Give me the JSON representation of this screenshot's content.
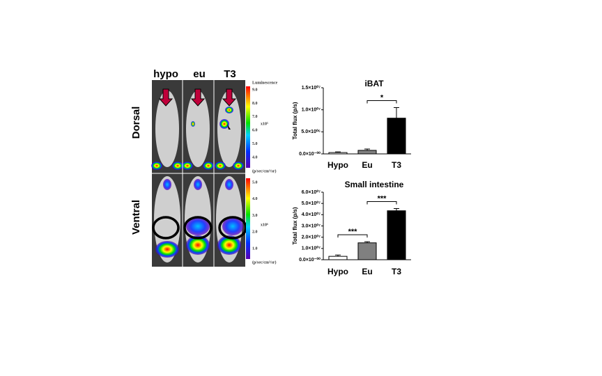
{
  "images": {
    "columns": [
      "hypo",
      "eu",
      "T3"
    ],
    "rows": [
      "Dorsal",
      "Ventral"
    ],
    "colorbar_top": {
      "title": "Luminescence",
      "ticks": [
        "9.0",
        "8.0",
        "7.0",
        "6.0",
        "5.0",
        "4.0"
      ],
      "scale": "x10⁵",
      "unit": "(p/sec/cm²/sr)"
    },
    "colorbar_bottom": {
      "ticks": [
        "5.0",
        "4.0",
        "3.0",
        "2.0",
        "1.0"
      ],
      "scale": "x10⁶",
      "unit": "(p/sec/cm²/sr)"
    }
  },
  "chart_data": [
    {
      "type": "bar",
      "title": "iBAT",
      "y_label": "Total flux (p/s)",
      "categories": [
        "Hypo",
        "Eu",
        "T3"
      ],
      "values": [
        300000,
        800000,
        8100000
      ],
      "errors": [
        150000,
        300000,
        2400000
      ],
      "colors": [
        "#ffffff",
        "#808080",
        "#000000"
      ],
      "ylim": [
        0,
        15000000
      ],
      "yticks": [
        {
          "value": 0,
          "label": "0.0×10⁻⁰⁰"
        },
        {
          "value": 5000000,
          "label": "5.0×10⁰⁶"
        },
        {
          "value": 10000000,
          "label": "1.0×10⁰⁷"
        },
        {
          "value": 15000000,
          "label": "1.5×10⁰⁷"
        }
      ],
      "annotations": [
        {
          "text": "*",
          "between": [
            "Eu",
            "T3"
          ]
        }
      ]
    },
    {
      "type": "bar",
      "title": "Small intestine",
      "y_label": "Total flux (p/s)",
      "categories": [
        "Hypo",
        "Eu",
        "T3"
      ],
      "values": [
        3000000,
        15000000,
        43500000
      ],
      "errors": [
        1200000,
        1000000,
        2000000
      ],
      "colors": [
        "#ffffff",
        "#808080",
        "#000000"
      ],
      "ylim": [
        0,
        60000000
      ],
      "yticks": [
        {
          "value": 0,
          "label": "0.0×10⁻⁰⁰"
        },
        {
          "value": 10000000,
          "label": "1.0×10⁰⁷"
        },
        {
          "value": 20000000,
          "label": "2.0×10⁰⁷"
        },
        {
          "value": 30000000,
          "label": "3.0×10⁰⁷"
        },
        {
          "value": 40000000,
          "label": "4.0×10⁰⁷"
        },
        {
          "value": 50000000,
          "label": "5.0×10⁰⁷"
        },
        {
          "value": 60000000,
          "label": "6.0×10⁰⁷"
        }
      ],
      "annotations": [
        {
          "text": "***",
          "between": [
            "Hypo",
            "Eu"
          ]
        },
        {
          "text": "***",
          "between": [
            "Eu",
            "T3"
          ]
        }
      ]
    }
  ]
}
